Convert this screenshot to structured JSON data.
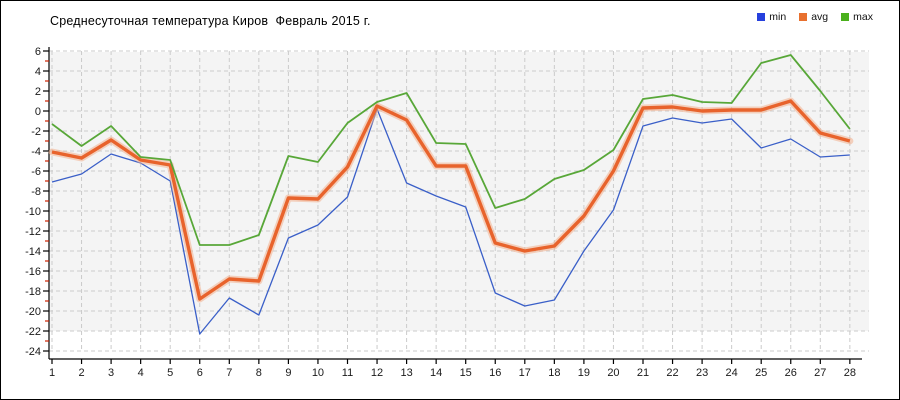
{
  "title": "Среднесуточная температура Киров  Февраль 2015 г.",
  "colors": {
    "plot_bg": "#f4f4f4",
    "grid": "#cbcbcb",
    "axis": "#000000",
    "minor_tick": "#cc2200",
    "min_line": "#3a5fc8",
    "avg_line": "#e8632c",
    "avg_halo": "#f2b08e",
    "max_line": "#58a738",
    "legend_min": "#2640dd",
    "legend_avg": "#e8702e",
    "legend_max": "#4ab01c"
  },
  "chart_data": {
    "type": "line",
    "title": "Среднесуточная температура Киров  Февраль 2015 г.",
    "xlabel": "",
    "ylabel": "",
    "ylim": [
      -24,
      6
    ],
    "grid": true,
    "legend_position": "top-right",
    "y_ticks": [
      6,
      4,
      2,
      0,
      -2,
      -4,
      -6,
      -8,
      -10,
      -12,
      -14,
      -16,
      -18,
      -20,
      -22,
      -24
    ],
    "x": [
      1,
      2,
      3,
      4,
      5,
      6,
      7,
      8,
      9,
      10,
      11,
      12,
      13,
      14,
      15,
      16,
      17,
      18,
      19,
      20,
      21,
      22,
      23,
      24,
      25,
      26,
      27,
      28
    ],
    "series": [
      {
        "name": "min",
        "values": [
          -7.1,
          -6.3,
          -4.3,
          -5.2,
          -7.0,
          -22.3,
          -18.7,
          -20.4,
          -12.7,
          -11.4,
          -8.6,
          0.2,
          -7.2,
          -8.5,
          -9.6,
          -18.2,
          -19.5,
          -18.9,
          -14.0,
          -9.9,
          -1.5,
          -0.7,
          -1.2,
          -0.8,
          -3.7,
          -2.8,
          -4.6,
          -4.4
        ]
      },
      {
        "name": "avg",
        "values": [
          -4.1,
          -4.7,
          -2.9,
          -4.9,
          -5.4,
          -18.8,
          -16.8,
          -17.0,
          -8.7,
          -8.8,
          -5.6,
          0.5,
          -0.9,
          -5.5,
          -5.5,
          -13.2,
          -14.0,
          -13.5,
          -10.5,
          -6.0,
          0.3,
          0.4,
          0.0,
          0.1,
          0.1,
          1.0,
          -2.2,
          -3.0
        ]
      },
      {
        "name": "max",
        "values": [
          -1.3,
          -3.5,
          -1.5,
          -4.6,
          -4.9,
          -13.4,
          -13.4,
          -12.4,
          -4.5,
          -5.1,
          -1.2,
          0.9,
          1.8,
          -3.2,
          -3.3,
          -9.7,
          -8.8,
          -6.8,
          -5.9,
          -3.9,
          1.2,
          1.6,
          0.9,
          0.8,
          4.8,
          5.6,
          2.0,
          -1.8
        ]
      }
    ]
  }
}
